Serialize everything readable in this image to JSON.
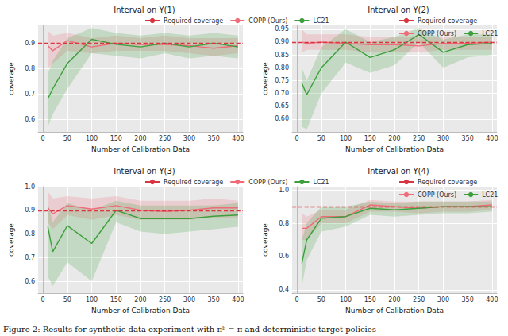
{
  "caption": "Figure 2: Results for synthetic data experiment with πᵇ = π and deterministic target policies",
  "chart_data": [
    {
      "type": "line",
      "title": "Interval on Y(1)",
      "xlabel": "Number of Calibration Data",
      "ylabel": "coverage",
      "grid": true,
      "legend": "top",
      "xlim": [
        -10,
        410
      ],
      "xticks": [
        0,
        50,
        100,
        150,
        200,
        250,
        300,
        350,
        400
      ],
      "ylim": [
        0.55,
        0.97
      ],
      "yticks": [
        {
          "value": 0.6,
          "label": "0.6"
        },
        0.7,
        0.8,
        0.9
      ],
      "reference_line": {
        "name": "Required coverage",
        "value": 0.9,
        "color": "#d9343f",
        "line_style": "dashed"
      },
      "x": [
        10,
        20,
        50,
        100,
        150,
        200,
        250,
        300,
        350,
        400
      ],
      "series": [
        {
          "name": "COPP (Ours)",
          "color": "#ef6b78",
          "values": [
            0.89,
            0.87,
            0.91,
            0.885,
            0.9,
            0.895,
            0.895,
            0.89,
            0.88,
            0.89
          ],
          "lower": [
            0.8,
            0.82,
            0.87,
            0.86,
            0.87,
            0.87,
            0.87,
            0.86,
            0.85,
            0.86
          ],
          "upper": [
            0.95,
            0.93,
            0.94,
            0.92,
            0.93,
            0.92,
            0.93,
            0.92,
            0.92,
            0.92
          ]
        },
        {
          "name": "LC21",
          "color": "#3c9f3c",
          "values": [
            0.68,
            0.72,
            0.82,
            0.915,
            0.895,
            0.885,
            0.9,
            0.885,
            0.9,
            0.885
          ],
          "lower": [
            0.57,
            0.62,
            0.72,
            0.86,
            0.85,
            0.84,
            0.86,
            0.84,
            0.85,
            0.84
          ],
          "upper": [
            0.78,
            0.83,
            0.92,
            0.96,
            0.94,
            0.93,
            0.94,
            0.93,
            0.94,
            0.93
          ]
        }
      ]
    },
    {
      "type": "line",
      "title": "Interval on Y(2)",
      "xlabel": "Number of Calibration Data",
      "ylabel": "coverage",
      "grid": true,
      "legend": "top",
      "xlim": [
        -10,
        410
      ],
      "xticks": [
        0,
        50,
        100,
        150,
        200,
        250,
        300,
        350,
        400
      ],
      "ylim": [
        0.55,
        0.965
      ],
      "yticks": [
        {
          "value": 0.6,
          "label": "0.60"
        },
        0.65,
        {
          "value": 0.7,
          "label": "0.70"
        },
        0.75,
        {
          "value": 0.8,
          "label": "0.80"
        },
        0.85,
        {
          "value": 0.9,
          "label": "0.90"
        },
        0.95
      ],
      "reference_line": {
        "name": "Required coverage",
        "value": 0.9,
        "color": "#d9343f",
        "line_style": "dashed"
      },
      "x": [
        10,
        20,
        50,
        100,
        150,
        200,
        250,
        300,
        350,
        400
      ],
      "series": [
        {
          "name": "COPP (Ours)",
          "color": "#ef6b78",
          "values": [
            0.9,
            0.895,
            0.9,
            0.895,
            0.89,
            0.89,
            0.885,
            0.895,
            0.895,
            0.9
          ],
          "lower": [
            0.86,
            0.87,
            0.87,
            0.87,
            0.86,
            0.86,
            0.86,
            0.87,
            0.87,
            0.87
          ],
          "upper": [
            0.95,
            0.93,
            0.93,
            0.93,
            0.92,
            0.92,
            0.92,
            0.92,
            0.92,
            0.92
          ]
        },
        {
          "name": "LC21",
          "color": "#3c9f3c",
          "values": [
            0.74,
            0.695,
            0.8,
            0.9,
            0.84,
            0.87,
            0.93,
            0.86,
            0.89,
            0.895
          ],
          "lower": [
            0.57,
            0.56,
            0.7,
            0.82,
            0.78,
            0.81,
            0.9,
            0.8,
            0.84,
            0.85
          ],
          "upper": [
            0.8,
            0.75,
            0.88,
            0.95,
            0.9,
            0.92,
            0.955,
            0.91,
            0.93,
            0.93
          ]
        }
      ]
    },
    {
      "type": "line",
      "title": "Interval on Y(3)",
      "xlabel": "Number of Calibration Data",
      "ylabel": "coverage",
      "grid": true,
      "legend": "top",
      "xlim": [
        -10,
        410
      ],
      "xticks": [
        0,
        50,
        100,
        150,
        200,
        250,
        300,
        350,
        400
      ],
      "ylim": [
        0.55,
        1.0
      ],
      "yticks": [
        {
          "value": 0.6,
          "label": "0.6"
        },
        0.7,
        0.8,
        0.9,
        {
          "value": 1.0,
          "label": "1.0"
        }
      ],
      "reference_line": {
        "name": "Required coverage",
        "value": 0.9,
        "color": "#d9343f",
        "line_style": "dashed"
      },
      "x": [
        10,
        20,
        50,
        100,
        150,
        200,
        250,
        300,
        350,
        400
      ],
      "series": [
        {
          "name": "COPP (Ours)",
          "color": "#ef6b78",
          "values": [
            0.91,
            0.885,
            0.92,
            0.905,
            0.92,
            0.9,
            0.895,
            0.9,
            0.91,
            0.91
          ],
          "lower": [
            0.85,
            0.82,
            0.88,
            0.86,
            0.88,
            0.86,
            0.86,
            0.86,
            0.87,
            0.87
          ],
          "upper": [
            0.98,
            0.95,
            0.96,
            0.95,
            0.96,
            0.94,
            0.94,
            0.94,
            0.95,
            0.94
          ]
        },
        {
          "name": "LC21",
          "color": "#3c9f3c",
          "values": [
            0.83,
            0.725,
            0.835,
            0.76,
            0.9,
            0.865,
            0.865,
            0.865,
            0.875,
            0.88
          ],
          "lower": [
            0.62,
            0.58,
            0.68,
            0.6,
            0.85,
            0.81,
            0.8,
            0.81,
            0.82,
            0.83
          ],
          "upper": [
            0.93,
            0.85,
            0.93,
            0.9,
            0.94,
            0.92,
            0.92,
            0.92,
            0.92,
            0.93
          ]
        }
      ]
    },
    {
      "type": "line",
      "title": "Interval on Y(4)",
      "xlabel": "Number of Calibration Data",
      "ylabel": "coverage",
      "grid": true,
      "legend": "top",
      "xlim": [
        -10,
        410
      ],
      "xticks": [
        0,
        50,
        100,
        150,
        200,
        250,
        300,
        350,
        400
      ],
      "ylim": [
        0.38,
        1.02
      ],
      "yticks": [
        0.4,
        0.6,
        0.8,
        {
          "value": 1.0,
          "label": "1.0"
        }
      ],
      "reference_line": {
        "name": "Required coverage",
        "value": 0.9,
        "color": "#d9343f",
        "line_style": "dashed"
      },
      "x": [
        10,
        20,
        50,
        100,
        150,
        200,
        250,
        300,
        350,
        400
      ],
      "series": [
        {
          "name": "COPP (Ours)",
          "color": "#ef6b78",
          "values": [
            0.77,
            0.77,
            0.84,
            0.84,
            0.91,
            0.9,
            0.89,
            0.9,
            0.9,
            0.91
          ],
          "lower": [
            0.7,
            0.7,
            0.8,
            0.8,
            0.87,
            0.87,
            0.86,
            0.87,
            0.87,
            0.88
          ],
          "upper": [
            0.86,
            0.84,
            0.88,
            0.88,
            0.94,
            0.93,
            0.93,
            0.93,
            0.93,
            0.94
          ]
        },
        {
          "name": "LC21",
          "color": "#3c9f3c",
          "values": [
            0.56,
            0.7,
            0.83,
            0.84,
            0.89,
            0.88,
            0.89,
            0.9,
            0.9,
            0.9
          ],
          "lower": [
            0.42,
            0.58,
            0.75,
            0.78,
            0.85,
            0.84,
            0.85,
            0.86,
            0.86,
            0.87
          ],
          "upper": [
            0.7,
            0.8,
            0.9,
            0.9,
            0.93,
            0.92,
            0.93,
            0.93,
            0.93,
            0.93
          ]
        }
      ]
    }
  ]
}
